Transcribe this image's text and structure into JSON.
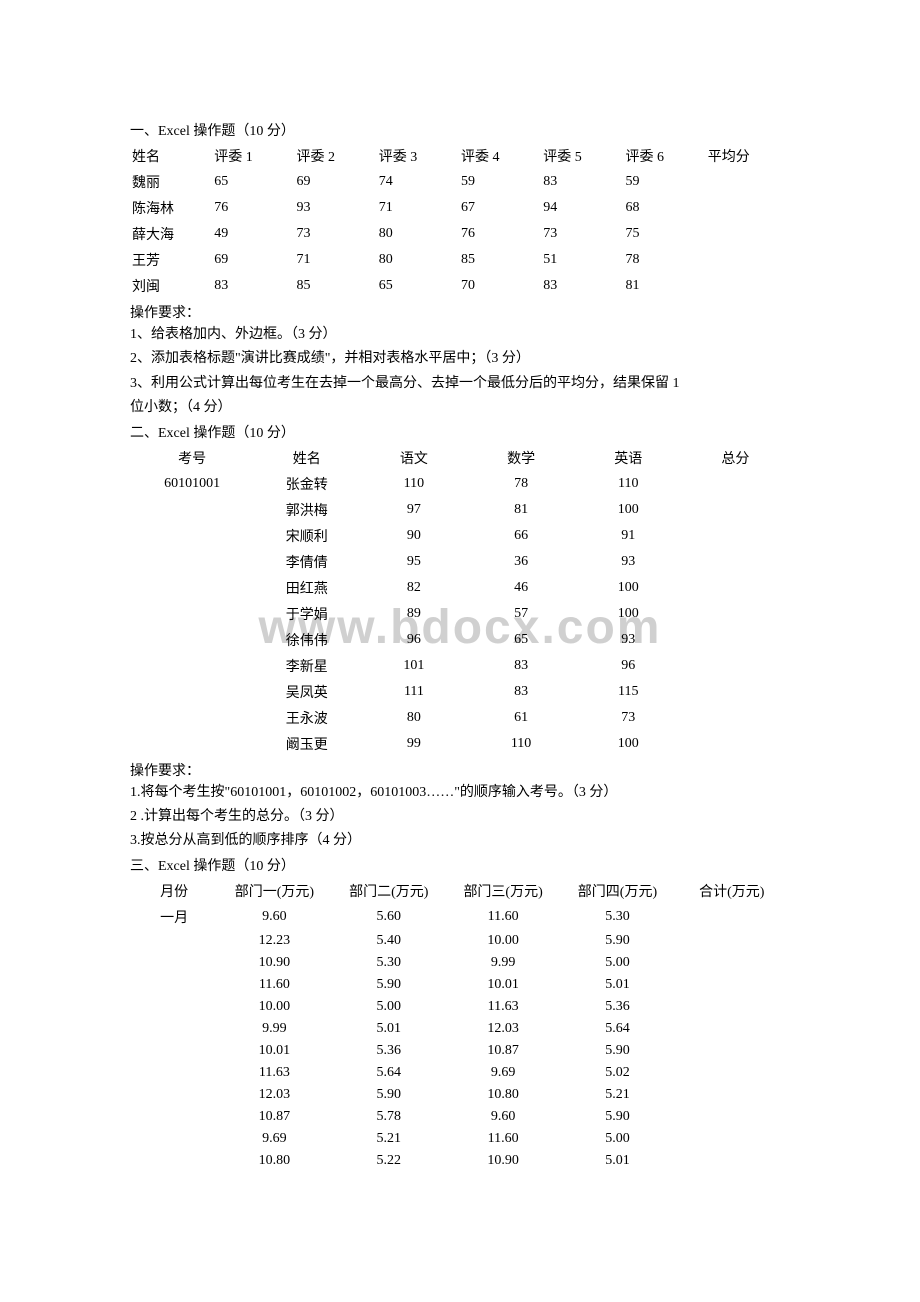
{
  "watermark": "www.bdocx.com",
  "section1": {
    "title": "一、Excel 操作题（10 分）",
    "headers": [
      "姓名",
      "评委 1",
      "评委 2",
      "评委 3",
      "评委 4",
      "评委 5",
      "评委 6",
      "平均分"
    ],
    "rows": [
      [
        "魏丽",
        "65",
        "69",
        "74",
        "59",
        "83",
        "59",
        ""
      ],
      [
        "陈海林",
        "76",
        "93",
        "71",
        "67",
        "94",
        "68",
        ""
      ],
      [
        "薛大海",
        "49",
        "73",
        "80",
        "76",
        "73",
        "75",
        ""
      ],
      [
        "王芳",
        "69",
        "71",
        "80",
        "85",
        "51",
        "78",
        ""
      ],
      [
        "刘闽",
        "83",
        "85",
        "65",
        "70",
        "83",
        "81",
        ""
      ]
    ],
    "req_header": "操作要求：",
    "reqs": [
      "1、给表格加内、外边框。（3 分）",
      "2、添加表格标题\"演讲比赛成绩\"，并相对表格水平居中；（3 分）",
      "3、利用公式计算出每位考生在去掉一个最高分、去掉一个最低分后的平均分，结果保留 1",
      "位小数；（4 分）"
    ]
  },
  "section2": {
    "title": "二、Excel 操作题（10 分）",
    "headers": [
      "考号",
      "姓名",
      "语文",
      "数学",
      "英语",
      "总分"
    ],
    "rows": [
      [
        "60101001",
        "张金转",
        "110",
        "78",
        "110",
        ""
      ],
      [
        "",
        "郭洪梅",
        "97",
        "81",
        "100",
        ""
      ],
      [
        "",
        "宋顺利",
        "90",
        "66",
        "91",
        ""
      ],
      [
        "",
        "李倩倩",
        "95",
        "36",
        "93",
        ""
      ],
      [
        "",
        "田红燕",
        "82",
        "46",
        "100",
        ""
      ],
      [
        "",
        "于学娟",
        "89",
        "57",
        "100",
        ""
      ],
      [
        "",
        "徐伟伟",
        "96",
        "65",
        "93",
        ""
      ],
      [
        "",
        "李新星",
        "101",
        "83",
        "96",
        ""
      ],
      [
        "",
        "吴凤英",
        "111",
        "83",
        "115",
        ""
      ],
      [
        "",
        "王永波",
        "80",
        "61",
        "73",
        ""
      ],
      [
        "",
        "阚玉更",
        "99",
        "110",
        "100",
        ""
      ]
    ],
    "req_header": "操作要求：",
    "reqs": [
      "1.将每个考生按\"60101001，60101002，60101003……\"的顺序输入考号。（3 分）",
      "2 .计算出每个考生的总分。（3 分）",
      "3.按总分从高到低的顺序排序（4 分）"
    ]
  },
  "section3": {
    "title": "三、Excel 操作题（10 分）",
    "headers": [
      "月份",
      "部门一(万元)",
      "部门二(万元)",
      "部门三(万元)",
      "部门四(万元)",
      "合计(万元)"
    ],
    "rows": [
      [
        "一月",
        "9.60",
        "5.60",
        "11.60",
        "5.30",
        ""
      ],
      [
        "",
        "12.23",
        "5.40",
        "10.00",
        "5.90",
        ""
      ],
      [
        "",
        "10.90",
        "5.30",
        "9.99",
        "5.00",
        ""
      ],
      [
        "",
        "11.60",
        "5.90",
        "10.01",
        "5.01",
        ""
      ],
      [
        "",
        "10.00",
        "5.00",
        "11.63",
        "5.36",
        ""
      ],
      [
        "",
        "9.99",
        "5.01",
        "12.03",
        "5.64",
        ""
      ],
      [
        "",
        "10.01",
        "5.36",
        "10.87",
        "5.90",
        ""
      ],
      [
        "",
        "11.63",
        "5.64",
        "9.69",
        "5.02",
        ""
      ],
      [
        "",
        "12.03",
        "5.90",
        "10.80",
        "5.21",
        ""
      ],
      [
        "",
        "10.87",
        "5.78",
        "9.60",
        "5.90",
        ""
      ],
      [
        "",
        "9.69",
        "5.21",
        "11.60",
        "5.00",
        ""
      ],
      [
        "",
        "10.80",
        "5.22",
        "10.90",
        "5.01",
        ""
      ]
    ]
  }
}
